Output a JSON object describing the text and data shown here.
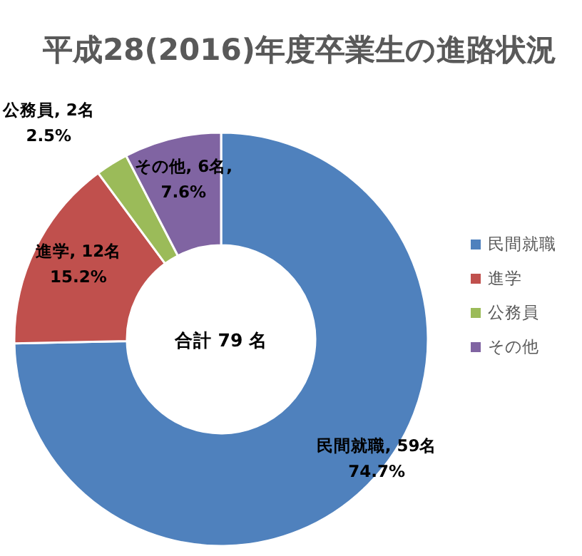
{
  "chart_data": {
    "type": "donut",
    "title": "平成28(2016)年度卒業生の進路状況",
    "categories": [
      "民間就職",
      "進学",
      "公務員",
      "その他"
    ],
    "values": [
      59,
      12,
      2,
      6
    ],
    "colors": [
      "#4f81bd",
      "#c0504d",
      "#9bbb59",
      "#8064a2"
    ],
    "value_labels": [
      "民間就職, 59名\n74.7%",
      "進学, 12名\n15.2%",
      "公務員, 2名\n2.5%",
      "その他, 6名,\n7.6%"
    ],
    "annotations": [
      "合計 79 名"
    ],
    "legend": "right"
  }
}
